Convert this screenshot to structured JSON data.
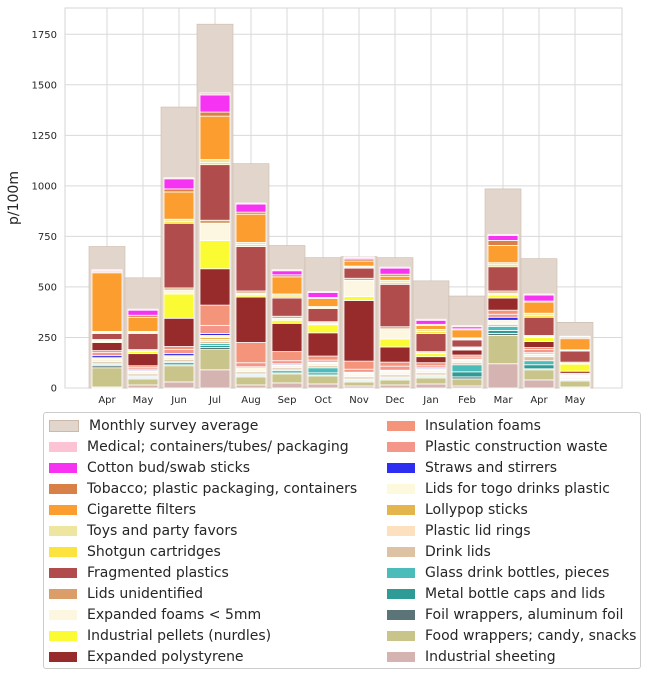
{
  "chart_data": {
    "type": "bar",
    "ylabel": "p/100m",
    "xlabel": "",
    "ylim": [
      0,
      1880
    ],
    "yticks": [
      0,
      250,
      500,
      750,
      1000,
      1250,
      1500,
      1750
    ],
    "categories": [
      "Apr",
      "May",
      "Jun",
      "Jul",
      "Aug",
      "Sep",
      "Oct",
      "Nov",
      "Dec",
      "Jan",
      "Feb",
      "Mar",
      "Apr",
      "May"
    ],
    "grid": true,
    "legend_placement": "below",
    "average": {
      "name": "Monthly survey average",
      "color": "#e2d6cc",
      "values": [
        700,
        545,
        1390,
        1800,
        1110,
        705,
        645,
        650,
        645,
        530,
        455,
        985,
        640,
        325
      ]
    },
    "series": [
      {
        "name": "Industrial sheeting",
        "color": "#d4b3b0",
        "values": [
          5,
          15,
          30,
          90,
          15,
          25,
          20,
          10,
          15,
          20,
          10,
          120,
          40,
          5
        ]
      },
      {
        "name": "Food wrappers; candy, snacks",
        "color": "#c9c58a",
        "values": [
          95,
          30,
          80,
          100,
          40,
          45,
          40,
          20,
          25,
          30,
          35,
          140,
          50,
          30
        ]
      },
      {
        "name": "Foil wrappers, aluminum foil",
        "color": "#5a7478",
        "values": [
          10,
          5,
          5,
          10,
          5,
          5,
          5,
          5,
          5,
          5,
          10,
          10,
          5,
          5
        ]
      },
      {
        "name": "Metal bottle caps and lids",
        "color": "#2e9b96",
        "values": [
          5,
          5,
          10,
          10,
          5,
          10,
          10,
          5,
          5,
          5,
          25,
          15,
          20,
          3
        ]
      },
      {
        "name": "Glass drink bottles, pieces",
        "color": "#4bbcb9",
        "values": [
          5,
          5,
          5,
          10,
          5,
          5,
          25,
          5,
          5,
          5,
          35,
          20,
          20,
          3
        ]
      },
      {
        "name": "Drink lids",
        "color": "#ddc3a4",
        "values": [
          10,
          10,
          10,
          10,
          10,
          10,
          10,
          10,
          10,
          10,
          10,
          10,
          20,
          5
        ]
      },
      {
        "name": "Plastic lid rings",
        "color": "#fde0bd",
        "values": [
          5,
          5,
          5,
          10,
          5,
          5,
          5,
          5,
          5,
          5,
          5,
          5,
          5,
          2
        ]
      },
      {
        "name": "Lollypop sticks",
        "color": "#e3b54c",
        "values": [
          5,
          5,
          5,
          10,
          5,
          5,
          5,
          5,
          5,
          5,
          5,
          5,
          5,
          2
        ]
      },
      {
        "name": "Lids for togo drinks plastic",
        "color": "#fdf9dc",
        "values": [
          10,
          5,
          10,
          10,
          10,
          5,
          5,
          10,
          10,
          10,
          5,
          10,
          5,
          5
        ]
      },
      {
        "name": "Straws and stirrers",
        "color": "#2e2ef3",
        "values": [
          10,
          5,
          10,
          10,
          5,
          5,
          3,
          3,
          3,
          5,
          3,
          15,
          5,
          3
        ]
      },
      {
        "name": "Plastic construction waste",
        "color": "#f4968a",
        "values": [
          15,
          10,
          20,
          40,
          20,
          15,
          10,
          15,
          20,
          10,
          10,
          15,
          15,
          5
        ]
      },
      {
        "name": "Insulation foams",
        "color": "#f4947b",
        "values": [
          10,
          10,
          15,
          100,
          100,
          45,
          20,
          40,
          20,
          15,
          10,
          20,
          10,
          5
        ]
      },
      {
        "name": "Expanded polystyrene",
        "color": "#972a2a",
        "values": [
          40,
          60,
          140,
          180,
          225,
          140,
          115,
          300,
          75,
          30,
          25,
          60,
          30,
          10
        ]
      },
      {
        "name": "Industrial pellets (nurdles)",
        "color": "#fbfb33",
        "values": [
          5,
          10,
          120,
          140,
          10,
          15,
          40,
          20,
          40,
          15,
          5,
          15,
          20,
          35
        ]
      },
      {
        "name": "Expanded foams < 5mm",
        "color": "#fdf6e0",
        "values": [
          5,
          5,
          20,
          85,
          10,
          10,
          10,
          80,
          50,
          5,
          5,
          10,
          5,
          5
        ]
      },
      {
        "name": "Lids unidentified",
        "color": "#dc9e68",
        "values": [
          5,
          5,
          10,
          15,
          10,
          10,
          5,
          10,
          10,
          5,
          5,
          10,
          5,
          5
        ]
      },
      {
        "name": "Fragmented plastics",
        "color": "#b04c4c",
        "values": [
          30,
          80,
          320,
          275,
          220,
          90,
          65,
          50,
          210,
          90,
          35,
          120,
          90,
          55
        ]
      },
      {
        "name": "Shotgun cartridges",
        "color": "#fde33d",
        "values": [
          5,
          5,
          10,
          10,
          10,
          10,
          5,
          5,
          10,
          10,
          5,
          10,
          10,
          3
        ]
      },
      {
        "name": "Toys and party favors",
        "color": "#eee5a0",
        "values": [
          5,
          5,
          10,
          15,
          10,
          10,
          5,
          5,
          10,
          10,
          5,
          10,
          10,
          3
        ]
      },
      {
        "name": "Cigarette filters",
        "color": "#fb9e2f",
        "values": [
          290,
          70,
          135,
          215,
          140,
          85,
          40,
          25,
          20,
          20,
          40,
          85,
          55,
          55
        ]
      },
      {
        "name": "Tobacco; plastic packaging, containers",
        "color": "#d97f48",
        "values": [
          5,
          10,
          15,
          20,
          10,
          10,
          5,
          10,
          10,
          5,
          5,
          25,
          5,
          5
        ]
      },
      {
        "name": "Cotton bud/swab sticks",
        "color": "#f733f3",
        "values": [
          5,
          25,
          50,
          85,
          40,
          20,
          25,
          5,
          30,
          20,
          10,
          25,
          30,
          5
        ]
      },
      {
        "name": "Medical; containers/tubes/ packaging",
        "color": "#fbc3d3",
        "values": [
          5,
          5,
          5,
          10,
          5,
          5,
          5,
          5,
          5,
          5,
          5,
          5,
          5,
          2
        ]
      }
    ],
    "legend_order": [
      "Monthly survey average",
      "Medical; containers/tubes/ packaging",
      "Cotton bud/swab sticks",
      "Tobacco; plastic packaging, containers",
      "Cigarette filters",
      "Toys and party favors",
      "Shotgun cartridges",
      "Fragmented plastics",
      "Lids unidentified",
      "Expanded foams < 5mm",
      "Industrial pellets (nurdles)",
      "Expanded polystyrene",
      "Insulation foams",
      "Plastic construction waste",
      "Straws and stirrers",
      "Lids for togo drinks plastic",
      "Lollypop sticks",
      "Plastic lid rings",
      "Drink lids",
      "Glass drink bottles, pieces",
      "Metal bottle caps and lids",
      "Foil wrappers, aluminum foil",
      "Food wrappers; candy, snacks",
      "Industrial sheeting"
    ]
  }
}
